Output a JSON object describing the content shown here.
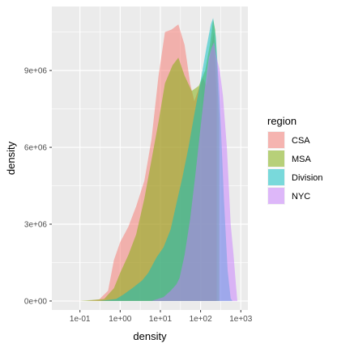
{
  "chart_data": {
    "type": "area",
    "title": "",
    "xlabel": "density",
    "ylabel": "density",
    "x_scale": "log10",
    "xlim": [
      0.02,
      1500
    ],
    "ylim": [
      -350000,
      11500000
    ],
    "x_ticks": [
      0.1,
      1,
      10,
      100,
      1000
    ],
    "x_tick_labels": [
      "1e-01",
      "1e+00",
      "1e+01",
      "1e+02",
      "1e+03"
    ],
    "y_ticks": [
      0,
      3000000,
      6000000,
      9000000
    ],
    "y_tick_labels": [
      "0e+00",
      "3e+06",
      "6e+06",
      "9e+06"
    ],
    "grid": true,
    "panel_background": "#ebebeb",
    "legend": {
      "title": "region",
      "position": "right"
    },
    "series": [
      {
        "name": "CSA",
        "color": "#F8766D",
        "points": [
          [
            0.05,
            0
          ],
          [
            0.15,
            5000
          ],
          [
            0.3,
            60000
          ],
          [
            0.5,
            400000
          ],
          [
            0.7,
            1600000
          ],
          [
            1.0,
            2300000
          ],
          [
            1.6,
            2900000
          ],
          [
            2.5,
            3700000
          ],
          [
            4.0,
            4700000
          ],
          [
            6.0,
            6300000
          ],
          [
            9.0,
            8800000
          ],
          [
            13.0,
            10500000
          ],
          [
            19.0,
            10600000
          ],
          [
            28.0,
            10800000
          ],
          [
            40.0,
            10000000
          ],
          [
            55.0,
            8500000
          ],
          [
            70.0,
            7800000
          ],
          [
            90.0,
            8300000
          ],
          [
            115.0,
            8700000
          ],
          [
            140.0,
            8400000
          ],
          [
            170.0,
            9500000
          ],
          [
            210.0,
            10500000
          ],
          [
            230.0,
            9500000
          ],
          [
            250.0,
            8000000
          ]
        ]
      },
      {
        "name": "MSA",
        "color": "#7CAE00",
        "points": [
          [
            0.1,
            0
          ],
          [
            0.4,
            80000
          ],
          [
            0.7,
            500000
          ],
          [
            1.0,
            1100000
          ],
          [
            1.6,
            1800000
          ],
          [
            2.5,
            2600000
          ],
          [
            4.0,
            4000000
          ],
          [
            6.0,
            5500000
          ],
          [
            9.0,
            7000000
          ],
          [
            13.0,
            8500000
          ],
          [
            20.0,
            9200000
          ],
          [
            28.0,
            9500000
          ],
          [
            40.0,
            8800000
          ],
          [
            60.0,
            8200000
          ],
          [
            90.0,
            8400000
          ],
          [
            130.0,
            9000000
          ],
          [
            170.0,
            10000000
          ],
          [
            205.0,
            11000000
          ],
          [
            230.0,
            10600000
          ],
          [
            260.0,
            9000000
          ],
          [
            290.0,
            7000000
          ]
        ]
      },
      {
        "name": "Division",
        "color": "#00BFC4",
        "points": [
          [
            0.3,
            0
          ],
          [
            0.8,
            80000
          ],
          [
            1.2,
            250000
          ],
          [
            2.0,
            500000
          ],
          [
            3.5,
            800000
          ],
          [
            5.0,
            1100000
          ],
          [
            8.0,
            1700000
          ],
          [
            12.0,
            2100000
          ],
          [
            18.0,
            2800000
          ],
          [
            25.0,
            3800000
          ],
          [
            35.0,
            4800000
          ],
          [
            50.0,
            6000000
          ],
          [
            70.0,
            7300000
          ],
          [
            100.0,
            8600000
          ],
          [
            140.0,
            9900000
          ],
          [
            180.0,
            10800000
          ],
          [
            205.0,
            11050000
          ],
          [
            240.0,
            10300000
          ],
          [
            300.0,
            7800000
          ],
          [
            380.0,
            4000000
          ],
          [
            470.0,
            1200000
          ],
          [
            560.0,
            100000
          ],
          [
            620.0,
            0
          ]
        ]
      },
      {
        "name": "NYC",
        "color": "#C77CFF",
        "points": [
          [
            6.0,
            0
          ],
          [
            12.0,
            150000
          ],
          [
            18.0,
            400000
          ],
          [
            25.0,
            650000
          ],
          [
            30.0,
            900000
          ],
          [
            40.0,
            1800000
          ],
          [
            55.0,
            3200000
          ],
          [
            75.0,
            5000000
          ],
          [
            100.0,
            6800000
          ],
          [
            130.0,
            8400000
          ],
          [
            160.0,
            9500000
          ],
          [
            190.0,
            9900000
          ],
          [
            215.0,
            10100000
          ],
          [
            250.0,
            9500000
          ],
          [
            300.0,
            9000000
          ],
          [
            360.0,
            8000000
          ],
          [
            450.0,
            6000000
          ],
          [
            560.0,
            3000000
          ],
          [
            660.0,
            1800000
          ],
          [
            750.0,
            700000
          ],
          [
            820.0,
            0
          ]
        ]
      }
    ]
  }
}
